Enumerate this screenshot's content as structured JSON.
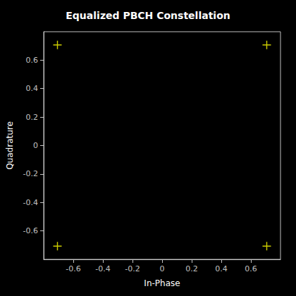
{
  "chart_data": {
    "type": "scatter",
    "title": "Equalized PBCH Constellation",
    "xlabel": "In-Phase",
    "ylabel": "Quadrature",
    "x": [
      -0.7071,
      0.7071,
      -0.7071,
      0.7071
    ],
    "values": [
      0.7071,
      0.7071,
      -0.7071,
      -0.7071
    ],
    "color": "#ffff00",
    "marker": "+",
    "xlim": [
      -0.8,
      0.8
    ],
    "ylim": [
      -0.8,
      0.8
    ],
    "xticks": [
      -0.6,
      -0.4,
      -0.2,
      0.0,
      0.2,
      0.4,
      0.6
    ],
    "yticks": [
      -0.6,
      -0.4,
      -0.2,
      0.0,
      0.2,
      0.4,
      0.6
    ],
    "grid": false
  }
}
